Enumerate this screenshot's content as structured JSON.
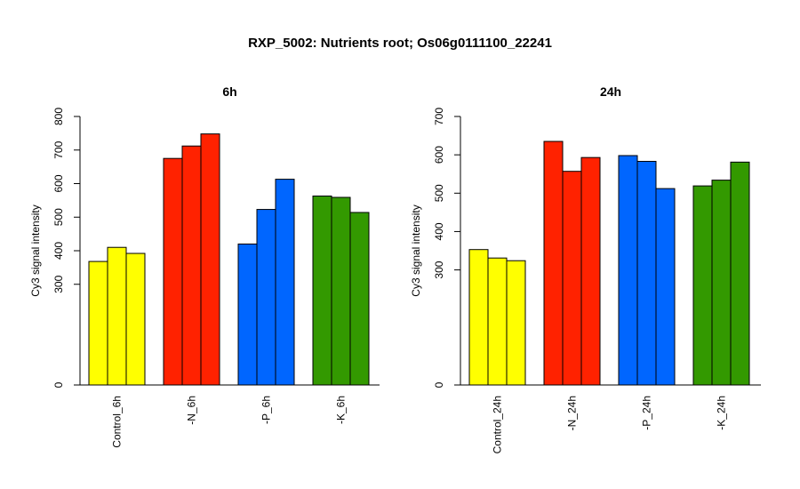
{
  "figure": {
    "title": "RXP_5002: Nutrients root; Os06g0111100_22241"
  },
  "chart_data": [
    {
      "type": "bar",
      "title": "6h",
      "ylabel": "Cy3 signal intensity",
      "xlabel": "",
      "ylim": [
        0,
        800
      ],
      "yticks": [
        0,
        300,
        400,
        500,
        600,
        700,
        800
      ],
      "categories": [
        "Control_6h",
        "-N_6h",
        "-P_6h",
        "-K_6h"
      ],
      "group_colors": [
        "#ffff00",
        "#ff2200",
        "#0066ff",
        "#339900"
      ],
      "values": [
        [
          368,
          410,
          392
        ],
        [
          675,
          712,
          748
        ],
        [
          420,
          523,
          613
        ],
        [
          563,
          559,
          514
        ]
      ],
      "grid": false,
      "legend": "none"
    },
    {
      "type": "bar",
      "title": "24h",
      "ylabel": "Cy3 signal intensity",
      "xlabel": "",
      "ylim": [
        0,
        700
      ],
      "yticks": [
        0,
        300,
        400,
        500,
        600,
        700
      ],
      "categories": [
        "Control_24h",
        "-N_24h",
        "-P_24h",
        "-K_24h"
      ],
      "group_colors": [
        "#ffff00",
        "#ff2200",
        "#0066ff",
        "#339900"
      ],
      "values": [
        [
          353,
          331,
          324
        ],
        [
          635,
          557,
          593
        ],
        [
          598,
          583,
          512
        ],
        [
          519,
          534,
          581
        ]
      ],
      "grid": false,
      "legend": "none"
    }
  ]
}
